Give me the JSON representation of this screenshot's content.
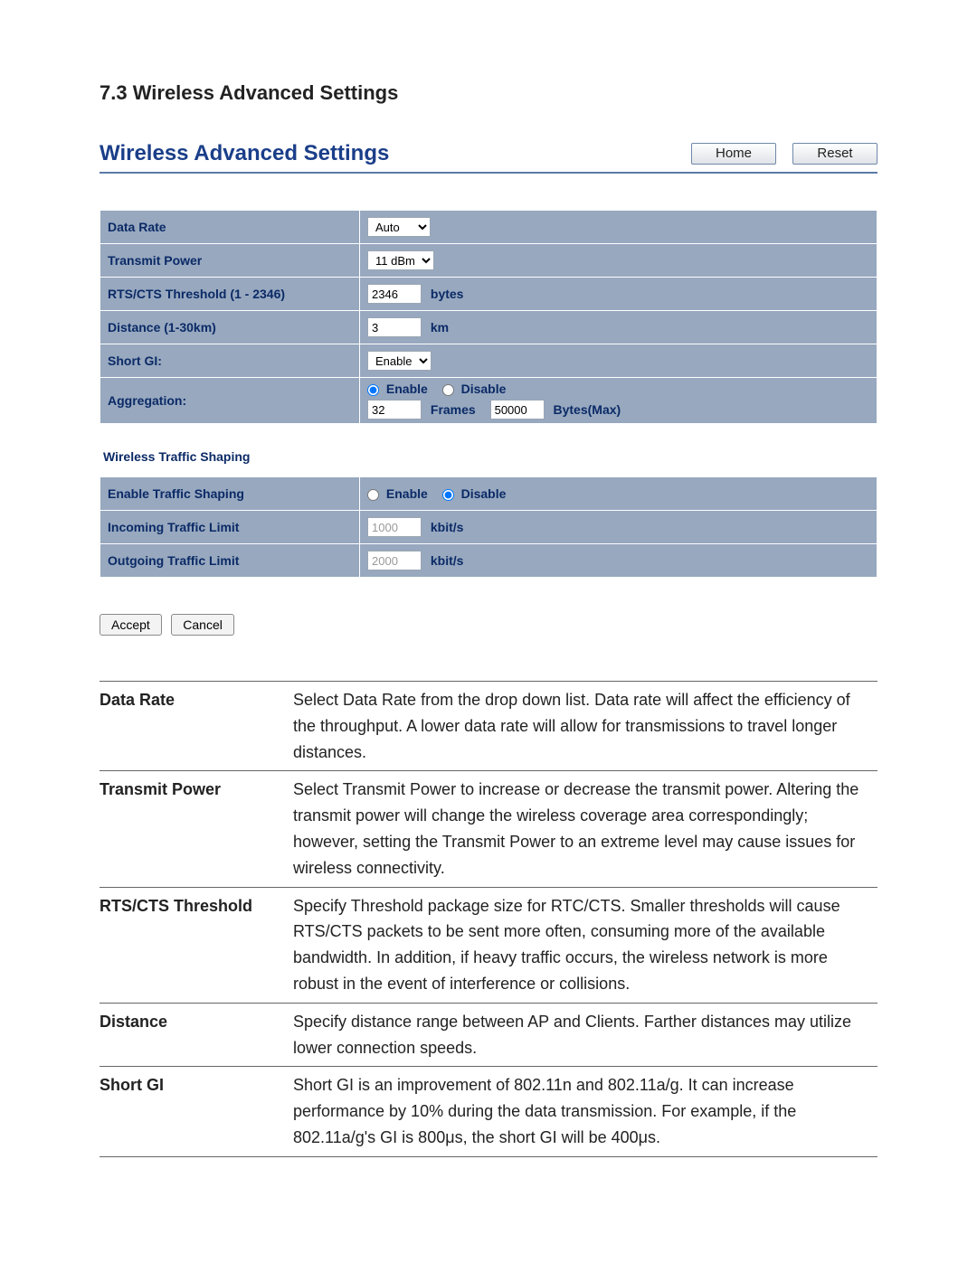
{
  "doc_heading": "7.3 Wireless Advanced Settings",
  "panel": {
    "title": "Wireless Advanced Settings",
    "home_label": "Home",
    "reset_label": "Reset"
  },
  "settings": {
    "data_rate": {
      "label": "Data Rate",
      "value": "Auto"
    },
    "tx_power": {
      "label": "Transmit Power",
      "value": "11 dBm"
    },
    "rts": {
      "label": "RTS/CTS Threshold (1 - 2346)",
      "value": "2346",
      "unit": "bytes"
    },
    "distance": {
      "label": "Distance (1-30km)",
      "value": "3",
      "unit": "km"
    },
    "short_gi": {
      "label": "Short GI:",
      "value": "Enable"
    },
    "aggregation": {
      "label": "Aggregation:",
      "enable_label": "Enable",
      "disable_label": "Disable",
      "selected": "enable",
      "frames_value": "32",
      "frames_label": "Frames",
      "bytes_value": "50000",
      "bytes_label": "Bytes(Max)"
    }
  },
  "traffic": {
    "section_title": "Wireless Traffic Shaping",
    "enable_row": {
      "label": "Enable Traffic Shaping",
      "enable_label": "Enable",
      "disable_label": "Disable",
      "selected": "disable"
    },
    "incoming": {
      "label": "Incoming Traffic Limit",
      "value": "1000",
      "unit": "kbit/s"
    },
    "outgoing": {
      "label": "Outgoing Traffic Limit",
      "value": "2000",
      "unit": "kbit/s"
    }
  },
  "actions": {
    "accept": "Accept",
    "cancel": "Cancel"
  },
  "descriptions": [
    {
      "term": "Data Rate",
      "text": "Select Data Rate from the drop down list. Data rate will affect the efficiency of the throughput. A lower data rate will allow for transmissions to travel longer distances."
    },
    {
      "term": "Transmit Power",
      "text": "Select Transmit Power to increase or decrease the transmit power. Altering the transmit power will change the wireless coverage area correspondingly; however, setting the Transmit Power to an extreme level may cause issues for wireless connectivity."
    },
    {
      "term": "RTS/CTS Threshold",
      "text": "Specify Threshold package size for RTC/CTS. Smaller thresholds will cause RTS/CTS packets to be sent more often, consuming more of the available bandwidth. In addition, if heavy traffic occurs, the wireless network is more robust in the event of interference or collisions."
    },
    {
      "term": "Distance",
      "text": "Specify distance range between AP and Clients. Farther distances may utilize lower connection speeds."
    },
    {
      "term": "Short GI",
      "text": "Short GI is an improvement of 802.11n and 802.11a/g. It can increase performance by 10% during the data transmission. For example, if the 802.11a/g's GI is 800μs, the short GI will be 400μs."
    }
  ],
  "style": {
    "row_bg": "#97a8bf",
    "label_color": "#0b2a66",
    "title_color": "#1a3e89",
    "header_rule": "#5b7aa6"
  }
}
